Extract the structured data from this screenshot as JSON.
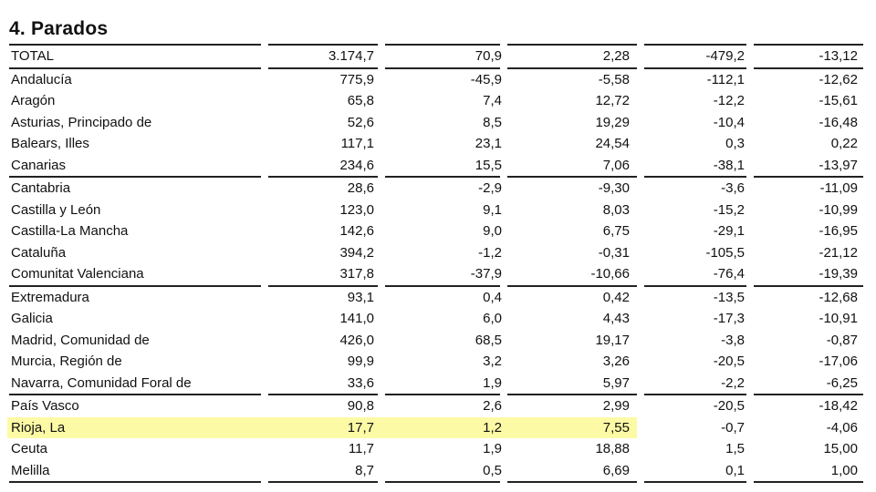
{
  "section_title": "4. Parados",
  "table": {
    "groups": [
      [
        [
          "TOTAL",
          "3.174,7",
          "70,9",
          "2,28",
          "-479,2",
          "-13,12"
        ]
      ],
      [
        [
          "Andalucía",
          "775,9",
          "-45,9",
          "-5,58",
          "-112,1",
          "-12,62"
        ],
        [
          "Aragón",
          "65,8",
          "7,4",
          "12,72",
          "-12,2",
          "-15,61"
        ],
        [
          "Asturias, Principado de",
          "52,6",
          "8,5",
          "19,29",
          "-10,4",
          "-16,48"
        ],
        [
          "Balears, Illes",
          "117,1",
          "23,1",
          "24,54",
          "0,3",
          "0,22"
        ],
        [
          "Canarias",
          "234,6",
          "15,5",
          "7,06",
          "-38,1",
          "-13,97"
        ]
      ],
      [
        [
          "Cantabria",
          "28,6",
          "-2,9",
          "-9,30",
          "-3,6",
          "-11,09"
        ],
        [
          "Castilla y León",
          "123,0",
          "9,1",
          "8,03",
          "-15,2",
          "-10,99"
        ],
        [
          "Castilla-La Mancha",
          "142,6",
          "9,0",
          "6,75",
          "-29,1",
          "-16,95"
        ],
        [
          "Cataluña",
          "394,2",
          "-1,2",
          "-0,31",
          "-105,5",
          "-21,12"
        ],
        [
          "Comunitat Valenciana",
          "317,8",
          "-37,9",
          "-10,66",
          "-76,4",
          "-19,39"
        ]
      ],
      [
        [
          "Extremadura",
          "93,1",
          "0,4",
          "0,42",
          "-13,5",
          "-12,68"
        ],
        [
          "Galicia",
          "141,0",
          "6,0",
          "4,43",
          "-17,3",
          "-10,91"
        ],
        [
          "Madrid, Comunidad de",
          "426,0",
          "68,5",
          "19,17",
          "-3,8",
          "-0,87"
        ],
        [
          "Murcia, Región de",
          "99,9",
          "3,2",
          "3,26",
          "-20,5",
          "-17,06"
        ],
        [
          "Navarra, Comunidad Foral de",
          "33,6",
          "1,9",
          "5,97",
          "-2,2",
          "-6,25"
        ]
      ],
      [
        [
          "País Vasco",
          "90,8",
          "2,6",
          "2,99",
          "-20,5",
          "-18,42"
        ],
        [
          "Rioja, La",
          "17,7",
          "1,2",
          "7,55",
          "-0,7",
          "-4,06"
        ],
        [
          "Ceuta",
          "11,7",
          "1,9",
          "18,88",
          "1,5",
          "15,00"
        ],
        [
          "Melilla",
          "8,7",
          "0,5",
          "6,69",
          "0,1",
          "1,00"
        ]
      ]
    ],
    "highlighted_row": "Rioja, La",
    "highlight_color": "#fdfaa6"
  }
}
